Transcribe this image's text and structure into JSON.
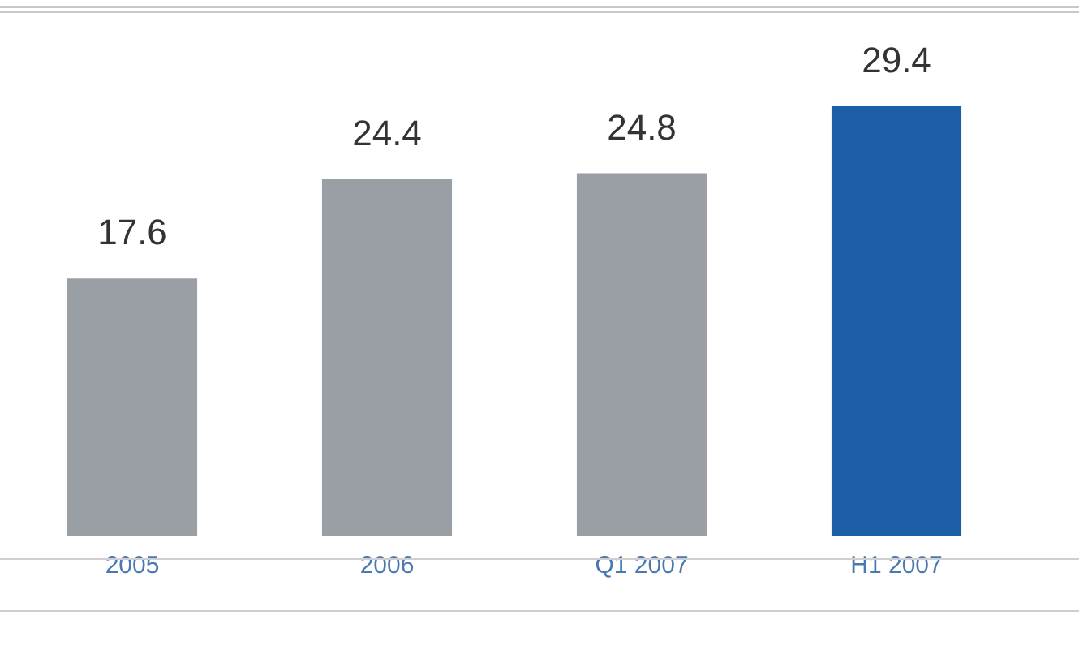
{
  "chart_data": {
    "type": "bar",
    "categories": [
      "2005",
      "2006",
      "Q1 2007",
      "H1 2007"
    ],
    "values": [
      17.6,
      24.4,
      24.8,
      29.4
    ],
    "colors": [
      "#9a9fa5",
      "#9a9fa5",
      "#9a9fa5",
      "#1c5ea8"
    ],
    "data_labels": true,
    "grid": false,
    "legend": false
  }
}
